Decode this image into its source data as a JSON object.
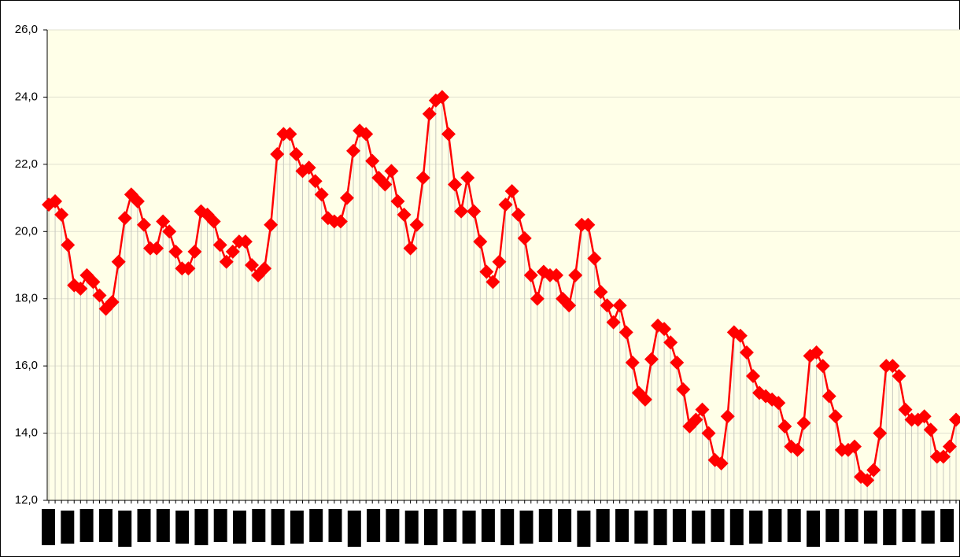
{
  "chart_data": {
    "type": "line",
    "color": "#ff0000",
    "grid": true,
    "drop_lines": true,
    "ylim": [
      12,
      26
    ],
    "yticks": [
      {
        "value": 12,
        "label": "12,0"
      },
      {
        "value": 14,
        "label": "14,0"
      },
      {
        "value": 16,
        "label": "16,0"
      },
      {
        "value": 18,
        "label": "18,0"
      },
      {
        "value": 20,
        "label": "20,0"
      },
      {
        "value": 22,
        "label": "22,0"
      },
      {
        "value": 24,
        "label": "24,0"
      },
      {
        "value": 26,
        "label": "26,0"
      }
    ],
    "values": [
      20.8,
      20.9,
      20.5,
      19.6,
      18.4,
      18.3,
      18.7,
      18.5,
      18.1,
      17.7,
      17.9,
      19.1,
      20.4,
      21.1,
      20.9,
      20.2,
      19.5,
      19.5,
      20.3,
      20.0,
      19.4,
      18.9,
      18.9,
      19.4,
      20.6,
      20.5,
      20.3,
      19.6,
      19.1,
      19.4,
      19.7,
      19.7,
      19.0,
      18.7,
      18.9,
      20.2,
      22.3,
      22.9,
      22.9,
      22.3,
      21.8,
      21.9,
      21.5,
      21.1,
      20.4,
      20.3,
      20.3,
      21.0,
      22.4,
      23.0,
      22.9,
      22.1,
      21.6,
      21.4,
      21.8,
      20.9,
      20.5,
      19.5,
      20.2,
      21.6,
      23.5,
      23.9,
      24.0,
      22.9,
      21.4,
      20.6,
      21.6,
      20.6,
      19.7,
      18.8,
      18.5,
      19.1,
      20.8,
      21.2,
      20.5,
      19.8,
      18.7,
      18.0,
      18.8,
      18.7,
      18.7,
      18.0,
      17.8,
      18.7,
      20.2,
      20.2,
      19.2,
      18.2,
      17.8,
      17.3,
      17.8,
      17.0,
      16.1,
      15.2,
      15.0,
      16.2,
      17.2,
      17.1,
      16.7,
      16.1,
      15.3,
      14.2,
      14.4,
      14.7,
      14.0,
      13.2,
      13.1,
      14.5,
      17.0,
      16.9,
      16.4,
      15.7,
      15.2,
      15.1,
      15.0,
      14.9,
      14.2,
      13.6,
      13.5,
      14.3,
      16.3,
      16.4,
      16.0,
      15.1,
      14.5,
      13.5,
      13.5,
      13.6,
      12.7,
      12.6,
      12.9,
      14.0,
      16.0,
      16.0,
      15.7,
      14.7,
      14.4,
      14.4,
      14.5,
      14.1,
      13.3,
      13.3,
      13.6,
      14.4
    ]
  }
}
